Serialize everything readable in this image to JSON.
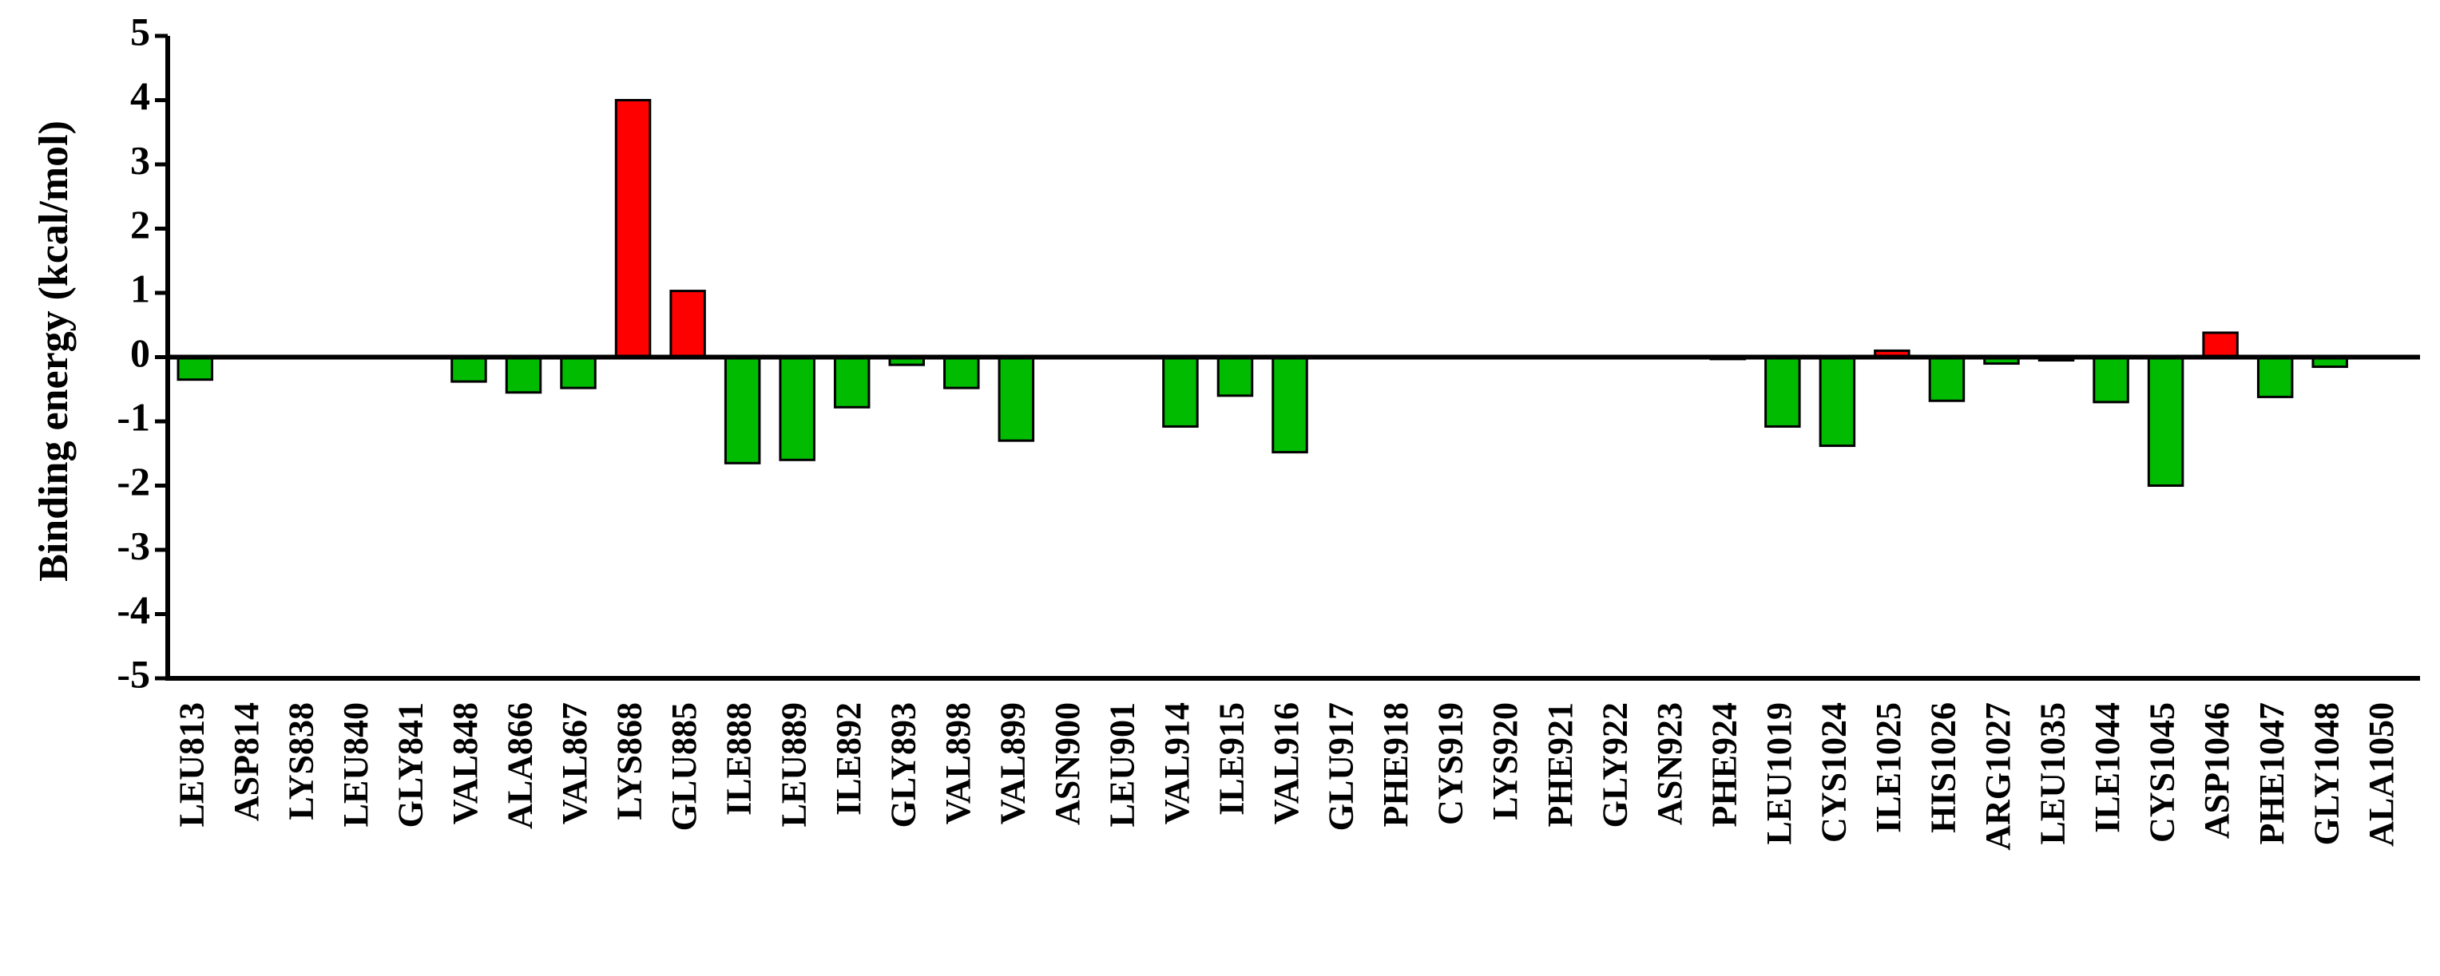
{
  "chart_data": {
    "type": "bar",
    "y_label": "Binding energy (kcal/mol)",
    "categories": [
      "LEU813",
      "ASP814",
      "LYS838",
      "LEU840",
      "GLY841",
      "VAL848",
      "ALA866",
      "VAL867",
      "LYS868",
      "GLU885",
      "ILE888",
      "LEU889",
      "ILE892",
      "GLY893",
      "VAL898",
      "VAL899",
      "ASN900",
      "LEU901",
      "VAL914",
      "ILE915",
      "VAL916",
      "GLU917",
      "PHE918",
      "CYS919",
      "LYS920",
      "PHE921",
      "GLY922",
      "ASN923",
      "PHE924",
      "LEU1019",
      "CYS1024",
      "ILE1025",
      "HIS1026",
      "ARG1027",
      "LEU1035",
      "ILE1044",
      "CYS1045",
      "ASP1046",
      "PHE1047",
      "GLY1048",
      "ALA1050"
    ],
    "values": [
      -0.35,
      0,
      0,
      0,
      0,
      -0.38,
      -0.55,
      -0.48,
      4.0,
      1.03,
      -1.65,
      -1.6,
      -0.78,
      -0.12,
      -0.48,
      -1.3,
      0,
      0,
      -1.08,
      -0.6,
      -1.48,
      0,
      0,
      0,
      0,
      0,
      0,
      0,
      -0.03,
      -1.08,
      -1.38,
      0.1,
      -0.68,
      -0.1,
      -0.05,
      -0.7,
      -2.0,
      0.38,
      -0.62,
      -0.15,
      0
    ],
    "positive_color": "#ff0000",
    "negative_color": "#00bb00",
    "ylim": [
      -5,
      5
    ],
    "yticks": [
      -5,
      -4,
      -3,
      -2,
      -1,
      0,
      1,
      2,
      3,
      4,
      5
    ]
  }
}
